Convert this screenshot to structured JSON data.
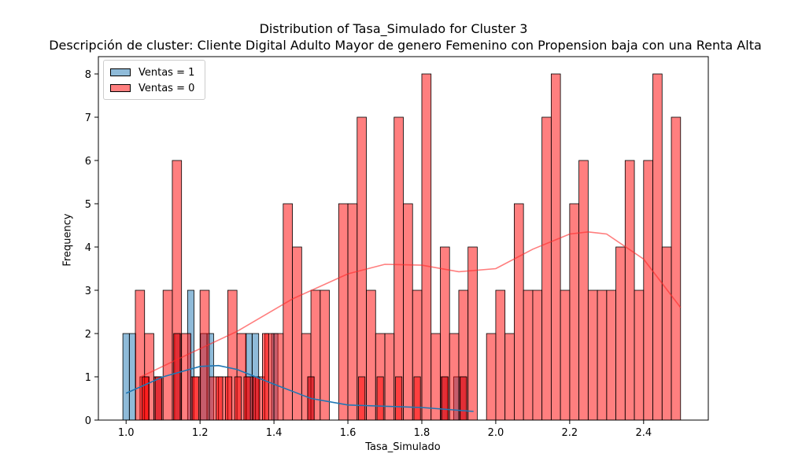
{
  "chart_data": {
    "type": "bar",
    "title": "Distribution of Tasa_Simulado for Cluster 3",
    "subtitle": "Descripción de cluster: Cliente Digital Adulto Mayor de genero Femenino con Propension baja con una Renta Alta",
    "xlabel": "Tasa_Simulado",
    "ylabel": "Frequency",
    "xlim": [
      0.925,
      2.575
    ],
    "ylim": [
      0,
      8.4
    ],
    "xticks": [
      1.0,
      1.2,
      1.4,
      1.6,
      1.8,
      2.0,
      2.2,
      2.4
    ],
    "xtick_labels": [
      "1.0",
      "1.2",
      "1.4",
      "1.6",
      "1.8",
      "2.0",
      "2.2",
      "2.4"
    ],
    "yticks": [
      0,
      1,
      2,
      3,
      4,
      5,
      6,
      7,
      8
    ],
    "ytick_labels": [
      "0",
      "1",
      "2",
      "3",
      "4",
      "5",
      "6",
      "7",
      "8"
    ],
    "legend_position": "top-left",
    "grid": false,
    "series": [
      {
        "name": "Ventas = 1",
        "color": "#1f77b4",
        "bin_width": 0.01746,
        "bins": [
          [
            1.0,
            2
          ],
          [
            1.0175,
            2
          ],
          [
            1.087,
            1
          ],
          [
            1.14,
            2
          ],
          [
            1.175,
            3
          ],
          [
            1.21,
            2
          ],
          [
            1.228,
            2
          ],
          [
            1.332,
            2
          ],
          [
            1.35,
            2
          ],
          [
            1.402,
            2
          ],
          [
            1.5,
            1
          ],
          [
            1.86,
            1
          ],
          [
            1.895,
            1
          ],
          [
            1.912,
            1
          ]
        ],
        "kde_x": [
          1.0,
          1.1,
          1.2,
          1.25,
          1.3,
          1.4,
          1.5,
          1.6,
          1.7,
          1.8,
          1.94
        ],
        "kde_y": [
          0.62,
          1.0,
          1.24,
          1.26,
          1.17,
          0.83,
          0.5,
          0.35,
          0.32,
          0.29,
          0.2
        ]
      },
      {
        "name": "Ventas = 0",
        "color": "#ff0000",
        "bin_width": 0.025,
        "bins": [
          [
            1.05,
            1
          ],
          [
            1.0375,
            3
          ],
          [
            1.0625,
            2
          ],
          [
            1.0875,
            1
          ],
          [
            1.1125,
            3
          ],
          [
            1.1375,
            6
          ],
          [
            1.1625,
            2
          ],
          [
            1.1875,
            1
          ],
          [
            1.2125,
            3
          ],
          [
            1.2375,
            1
          ],
          [
            1.2625,
            1
          ],
          [
            1.2875,
            3
          ],
          [
            1.3125,
            2
          ],
          [
            1.3375,
            1
          ],
          [
            1.3625,
            1
          ],
          [
            1.3875,
            2
          ],
          [
            1.4125,
            2
          ],
          [
            1.4375,
            5
          ],
          [
            1.4625,
            4
          ],
          [
            1.4875,
            2
          ],
          [
            1.5125,
            3
          ],
          [
            1.5375,
            3
          ],
          [
            1.5625,
            0
          ],
          [
            1.5875,
            5
          ],
          [
            1.6125,
            5
          ],
          [
            1.6375,
            7
          ],
          [
            1.6625,
            3
          ],
          [
            1.6875,
            2
          ],
          [
            1.7125,
            2
          ],
          [
            1.7375,
            7
          ],
          [
            1.7625,
            5
          ],
          [
            1.7875,
            3
          ],
          [
            1.8125,
            8
          ],
          [
            1.8375,
            2
          ],
          [
            1.8625,
            4
          ],
          [
            1.8875,
            2
          ],
          [
            1.9125,
            3
          ],
          [
            1.9375,
            4
          ],
          [
            1.9625,
            0
          ],
          [
            1.9875,
            2
          ],
          [
            2.0125,
            3
          ],
          [
            2.0375,
            2
          ],
          [
            2.0625,
            5
          ],
          [
            2.0875,
            3
          ],
          [
            2.1125,
            3
          ],
          [
            2.1375,
            7
          ],
          [
            2.1625,
            8
          ],
          [
            2.1875,
            3
          ],
          [
            2.2125,
            5
          ],
          [
            2.2375,
            6
          ],
          [
            2.2625,
            3
          ],
          [
            2.2875,
            3
          ],
          [
            2.3125,
            3
          ],
          [
            2.3375,
            4
          ],
          [
            2.3625,
            6
          ],
          [
            2.3875,
            3
          ],
          [
            2.4125,
            6
          ],
          [
            2.4375,
            8
          ],
          [
            2.4625,
            4
          ],
          [
            2.4875,
            7
          ]
        ],
        "small_bins": [
          [
            1.0525,
            1
          ],
          [
            1.0875,
            1
          ],
          [
            1.1375,
            2
          ],
          [
            1.1875,
            1
          ],
          [
            1.2525,
            1
          ],
          [
            1.2775,
            1
          ],
          [
            1.3025,
            1
          ],
          [
            1.3275,
            1
          ],
          [
            1.3525,
            1
          ],
          [
            1.3775,
            2
          ],
          [
            1.5,
            1
          ],
          [
            1.6375,
            1
          ],
          [
            1.6875,
            1
          ],
          [
            1.7375,
            1
          ],
          [
            1.7875,
            1
          ],
          [
            1.8625,
            1
          ],
          [
            1.9125,
            1
          ]
        ],
        "kde_x": [
          1.04,
          1.15,
          1.3,
          1.45,
          1.6,
          1.7,
          1.8,
          1.9,
          2.0,
          2.1,
          2.2,
          2.25,
          2.3,
          2.4,
          2.5
        ],
        "kde_y": [
          1.0,
          1.45,
          2.05,
          2.8,
          3.38,
          3.6,
          3.58,
          3.43,
          3.5,
          3.95,
          4.3,
          4.35,
          4.3,
          3.72,
          2.6
        ]
      }
    ]
  }
}
